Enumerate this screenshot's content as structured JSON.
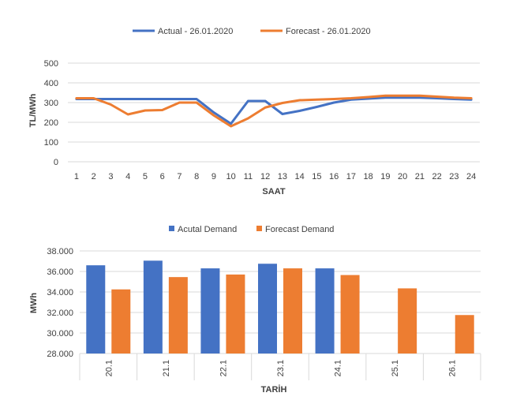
{
  "chart_data": [
    {
      "type": "line",
      "xlabel": "SAAT",
      "ylabel": "TL/MWh",
      "ylim": [
        0,
        500
      ],
      "yticks": [
        0,
        100,
        200,
        300,
        400,
        500
      ],
      "grid": true,
      "legend_position": "top",
      "x": [
        1,
        2,
        3,
        4,
        5,
        6,
        7,
        8,
        9,
        10,
        11,
        12,
        13,
        14,
        15,
        16,
        17,
        18,
        19,
        20,
        21,
        22,
        23,
        24
      ],
      "series": [
        {
          "name": "Actual - 26.01.2020",
          "color": "#4472C4",
          "values": [
            318,
            318,
            318,
            318,
            318,
            318,
            318,
            318,
            250,
            193,
            308,
            308,
            242,
            258,
            278,
            300,
            315,
            320,
            325,
            325,
            325,
            322,
            318,
            315
          ]
        },
        {
          "name": "Forecast - 26.01.2020",
          "color": "#ED7D31",
          "values": [
            322,
            322,
            290,
            240,
            260,
            262,
            300,
            300,
            235,
            180,
            220,
            275,
            298,
            312,
            315,
            318,
            322,
            328,
            335,
            335,
            335,
            330,
            325,
            322
          ]
        }
      ]
    },
    {
      "type": "bar",
      "xlabel": "TARİH",
      "ylabel": "MWh",
      "ylim": [
        28000,
        38000
      ],
      "yticks": [
        "28.000",
        "30.000",
        "32.000",
        "34.000",
        "36.000",
        "38.000"
      ],
      "ytick_values": [
        28000,
        30000,
        32000,
        34000,
        36000,
        38000
      ],
      "grid": true,
      "legend_position": "top",
      "categories": [
        "20.1",
        "21.1",
        "22.1",
        "23.1",
        "24.1",
        "25.1",
        "26.1"
      ],
      "series": [
        {
          "name": "Acutal Demand",
          "color": "#4472C4",
          "values": [
            36600,
            37050,
            36300,
            36750,
            36300,
            null,
            null
          ]
        },
        {
          "name": "Forecast Demand",
          "color": "#ED7D31",
          "values": [
            34250,
            35450,
            35700,
            36300,
            35650,
            34350,
            31750
          ]
        }
      ]
    }
  ]
}
